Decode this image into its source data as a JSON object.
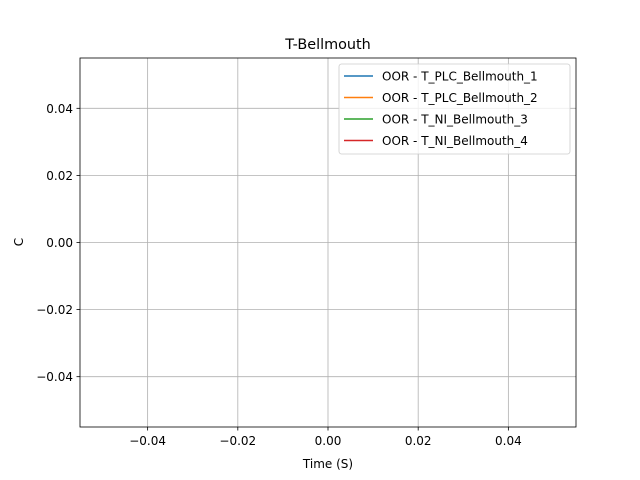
{
  "chart_data": {
    "type": "line",
    "title": "T-Bellmouth",
    "xlabel": "Time (S)",
    "ylabel": "C",
    "xlim": [
      -0.055,
      0.055
    ],
    "ylim": [
      -0.055,
      0.055
    ],
    "xticks": [
      -0.04,
      -0.02,
      0.0,
      0.02,
      0.04
    ],
    "xtick_labels": [
      "−0.04",
      "−0.02",
      "0.00",
      "0.02",
      "0.04"
    ],
    "yticks": [
      -0.04,
      -0.02,
      0.0,
      0.02,
      0.04
    ],
    "ytick_labels": [
      "−0.04",
      "−0.02",
      "0.00",
      "0.02",
      "0.04"
    ],
    "grid": true,
    "legend_position": "top-right",
    "series": [
      {
        "name": "OOR - T_PLC_Bellmouth_1",
        "color": "#1f77b4",
        "x": [],
        "y": []
      },
      {
        "name": "OOR - T_PLC_Bellmouth_2",
        "color": "#ff7f0e",
        "x": [],
        "y": []
      },
      {
        "name": "OOR - T_NI_Bellmouth_3",
        "color": "#2ca02c",
        "x": [],
        "y": []
      },
      {
        "name": "OOR - T_NI_Bellmouth_4",
        "color": "#d62728",
        "x": [],
        "y": []
      }
    ]
  }
}
